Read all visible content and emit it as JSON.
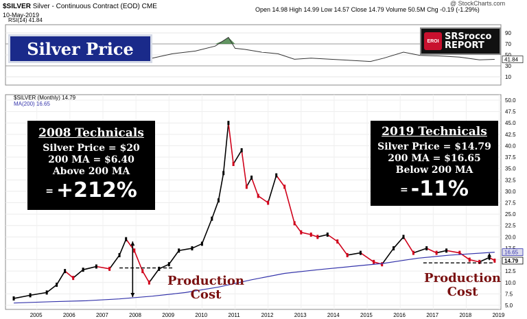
{
  "header": {
    "symbol": "$SILVER",
    "name": "Silver - Continuous Contract (EOD)",
    "exchange": "CME",
    "date": "10-May-2019",
    "quote": "Open 14.98  High 14.99  Low 14.57  Close 14.79  Volume 50.5M  Chg -0.19 (-1.29%)",
    "source": "@ StockCharts.com"
  },
  "title_box": "Silver Price",
  "logo": {
    "mark": "EROI",
    "line1": "SRSrocco",
    "line2": "REPORT"
  },
  "rsi_panel": {
    "label": "RSI(14) 41.84",
    "last_value": "41.84",
    "ticks": [
      "90",
      "70",
      "50",
      "30",
      "10"
    ]
  },
  "price_panel": {
    "legend_price": "$SILVER (Monthly) 14.79",
    "legend_ma": "MA(200) 16.65"
  },
  "price_tags": {
    "ma": "16.65",
    "close": "14.79"
  },
  "box_2008": {
    "title": "2008 Technicals",
    "line1": "Silver Price = $20",
    "line2": "200 MA = $6.40",
    "line3": "Above 200 MA",
    "eq": "=",
    "big": "+212%"
  },
  "box_2019": {
    "title": "2019 Technicals",
    "line1": "Silver Price = $14.79",
    "line2": "200 MA = $16.65",
    "line3": "Below 200 MA",
    "eq": "=",
    "big": "-11%"
  },
  "annotations": {
    "prod_left_1": "Production",
    "prod_left_2": "Cost",
    "prod_right_1": "Production",
    "prod_right_2": "Cost"
  },
  "colors": {
    "up": "#000000",
    "down": "#d0021b",
    "ma": "#3333aa",
    "rsi": "#333333",
    "rsi_fill": "#3b7a3b",
    "title_box": "#1a2a8a",
    "annotation": "#7a1010"
  },
  "chart_data": {
    "type": "line",
    "title": "Silver Price",
    "ylabel": "",
    "ylim": [
      5,
      50
    ],
    "x_ticks": [
      "2005",
      "2006",
      "2007",
      "2008",
      "2009",
      "2010",
      "2011",
      "2012",
      "2013",
      "2014",
      "2015",
      "2016",
      "2017",
      "2018",
      "2019"
    ],
    "y_ticks": [
      "50.0",
      "47.5",
      "45.0",
      "42.5",
      "40.0",
      "37.5",
      "35.0",
      "32.5",
      "30.0",
      "27.5",
      "25.0",
      "22.5",
      "20.0",
      "17.5",
      "15.0",
      "12.5",
      "10.0",
      "7.5",
      "5.0"
    ],
    "series": [
      {
        "name": "$SILVER (Monthly)",
        "x": [
          2004.8,
          2005.3,
          2005.8,
          2006.1,
          2006.35,
          2006.6,
          2006.9,
          2007.3,
          2007.7,
          2008.0,
          2008.2,
          2008.45,
          2008.7,
          2008.9,
          2009.2,
          2009.5,
          2009.8,
          2010.2,
          2010.5,
          2010.8,
          2011.0,
          2011.15,
          2011.3,
          2011.45,
          2011.7,
          2011.85,
          2012.0,
          2012.2,
          2012.5,
          2012.75,
          2013.0,
          2013.3,
          2013.5,
          2013.8,
          2014.0,
          2014.3,
          2014.6,
          2014.9,
          2015.3,
          2015.7,
          2015.95,
          2016.3,
          2016.6,
          2016.9,
          2017.3,
          2017.6,
          2017.9,
          2018.3,
          2018.6,
          2018.9,
          2019.2,
          2019.36
        ],
        "values": [
          6.5,
          7.2,
          7.8,
          9.5,
          12.5,
          11.0,
          12.8,
          13.5,
          13.0,
          16.0,
          19.5,
          17.0,
          12.5,
          10.0,
          13.0,
          14.0,
          17.0,
          17.5,
          18.5,
          24.0,
          28.0,
          34.0,
          45.0,
          36.0,
          39.0,
          31.0,
          33.0,
          29.0,
          27.5,
          33.5,
          31.0,
          23.0,
          21.0,
          20.5,
          20.0,
          20.5,
          19.0,
          16.0,
          16.5,
          14.5,
          14.0,
          17.5,
          20.0,
          16.5,
          17.5,
          16.5,
          17.0,
          16.5,
          15.0,
          14.5,
          15.5,
          14.79
        ]
      },
      {
        "name": "MA(200)",
        "x": [
          2004.8,
          2006.0,
          2007.0,
          2008.0,
          2009.0,
          2010.0,
          2011.0,
          2012.0,
          2013.0,
          2014.0,
          2015.0,
          2016.0,
          2017.0,
          2018.0,
          2019.36
        ],
        "values": [
          5.5,
          5.8,
          6.0,
          6.4,
          7.0,
          7.8,
          9.0,
          10.6,
          12.0,
          12.8,
          13.5,
          14.2,
          15.3,
          16.0,
          16.65
        ]
      }
    ],
    "rsi": {
      "ylim": [
        0,
        100
      ],
      "x": [
        2004.8,
        2005.5,
        2006.3,
        2007.0,
        2007.8,
        2008.5,
        2009.0,
        2009.6,
        2010.3,
        2010.9,
        2011.15,
        2011.3,
        2011.5,
        2011.8,
        2012.3,
        2012.8,
        2013.3,
        2013.8,
        2014.4,
        2015.0,
        2015.6,
        2016.0,
        2016.6,
        2017.1,
        2017.7,
        2018.3,
        2018.9,
        2019.36
      ],
      "values": [
        50,
        55,
        58,
        52,
        56,
        50,
        44,
        52,
        57,
        66,
        76,
        82,
        62,
        60,
        55,
        52,
        42,
        44,
        42,
        40,
        38,
        44,
        55,
        49,
        48,
        46,
        41,
        41.84
      ]
    }
  }
}
